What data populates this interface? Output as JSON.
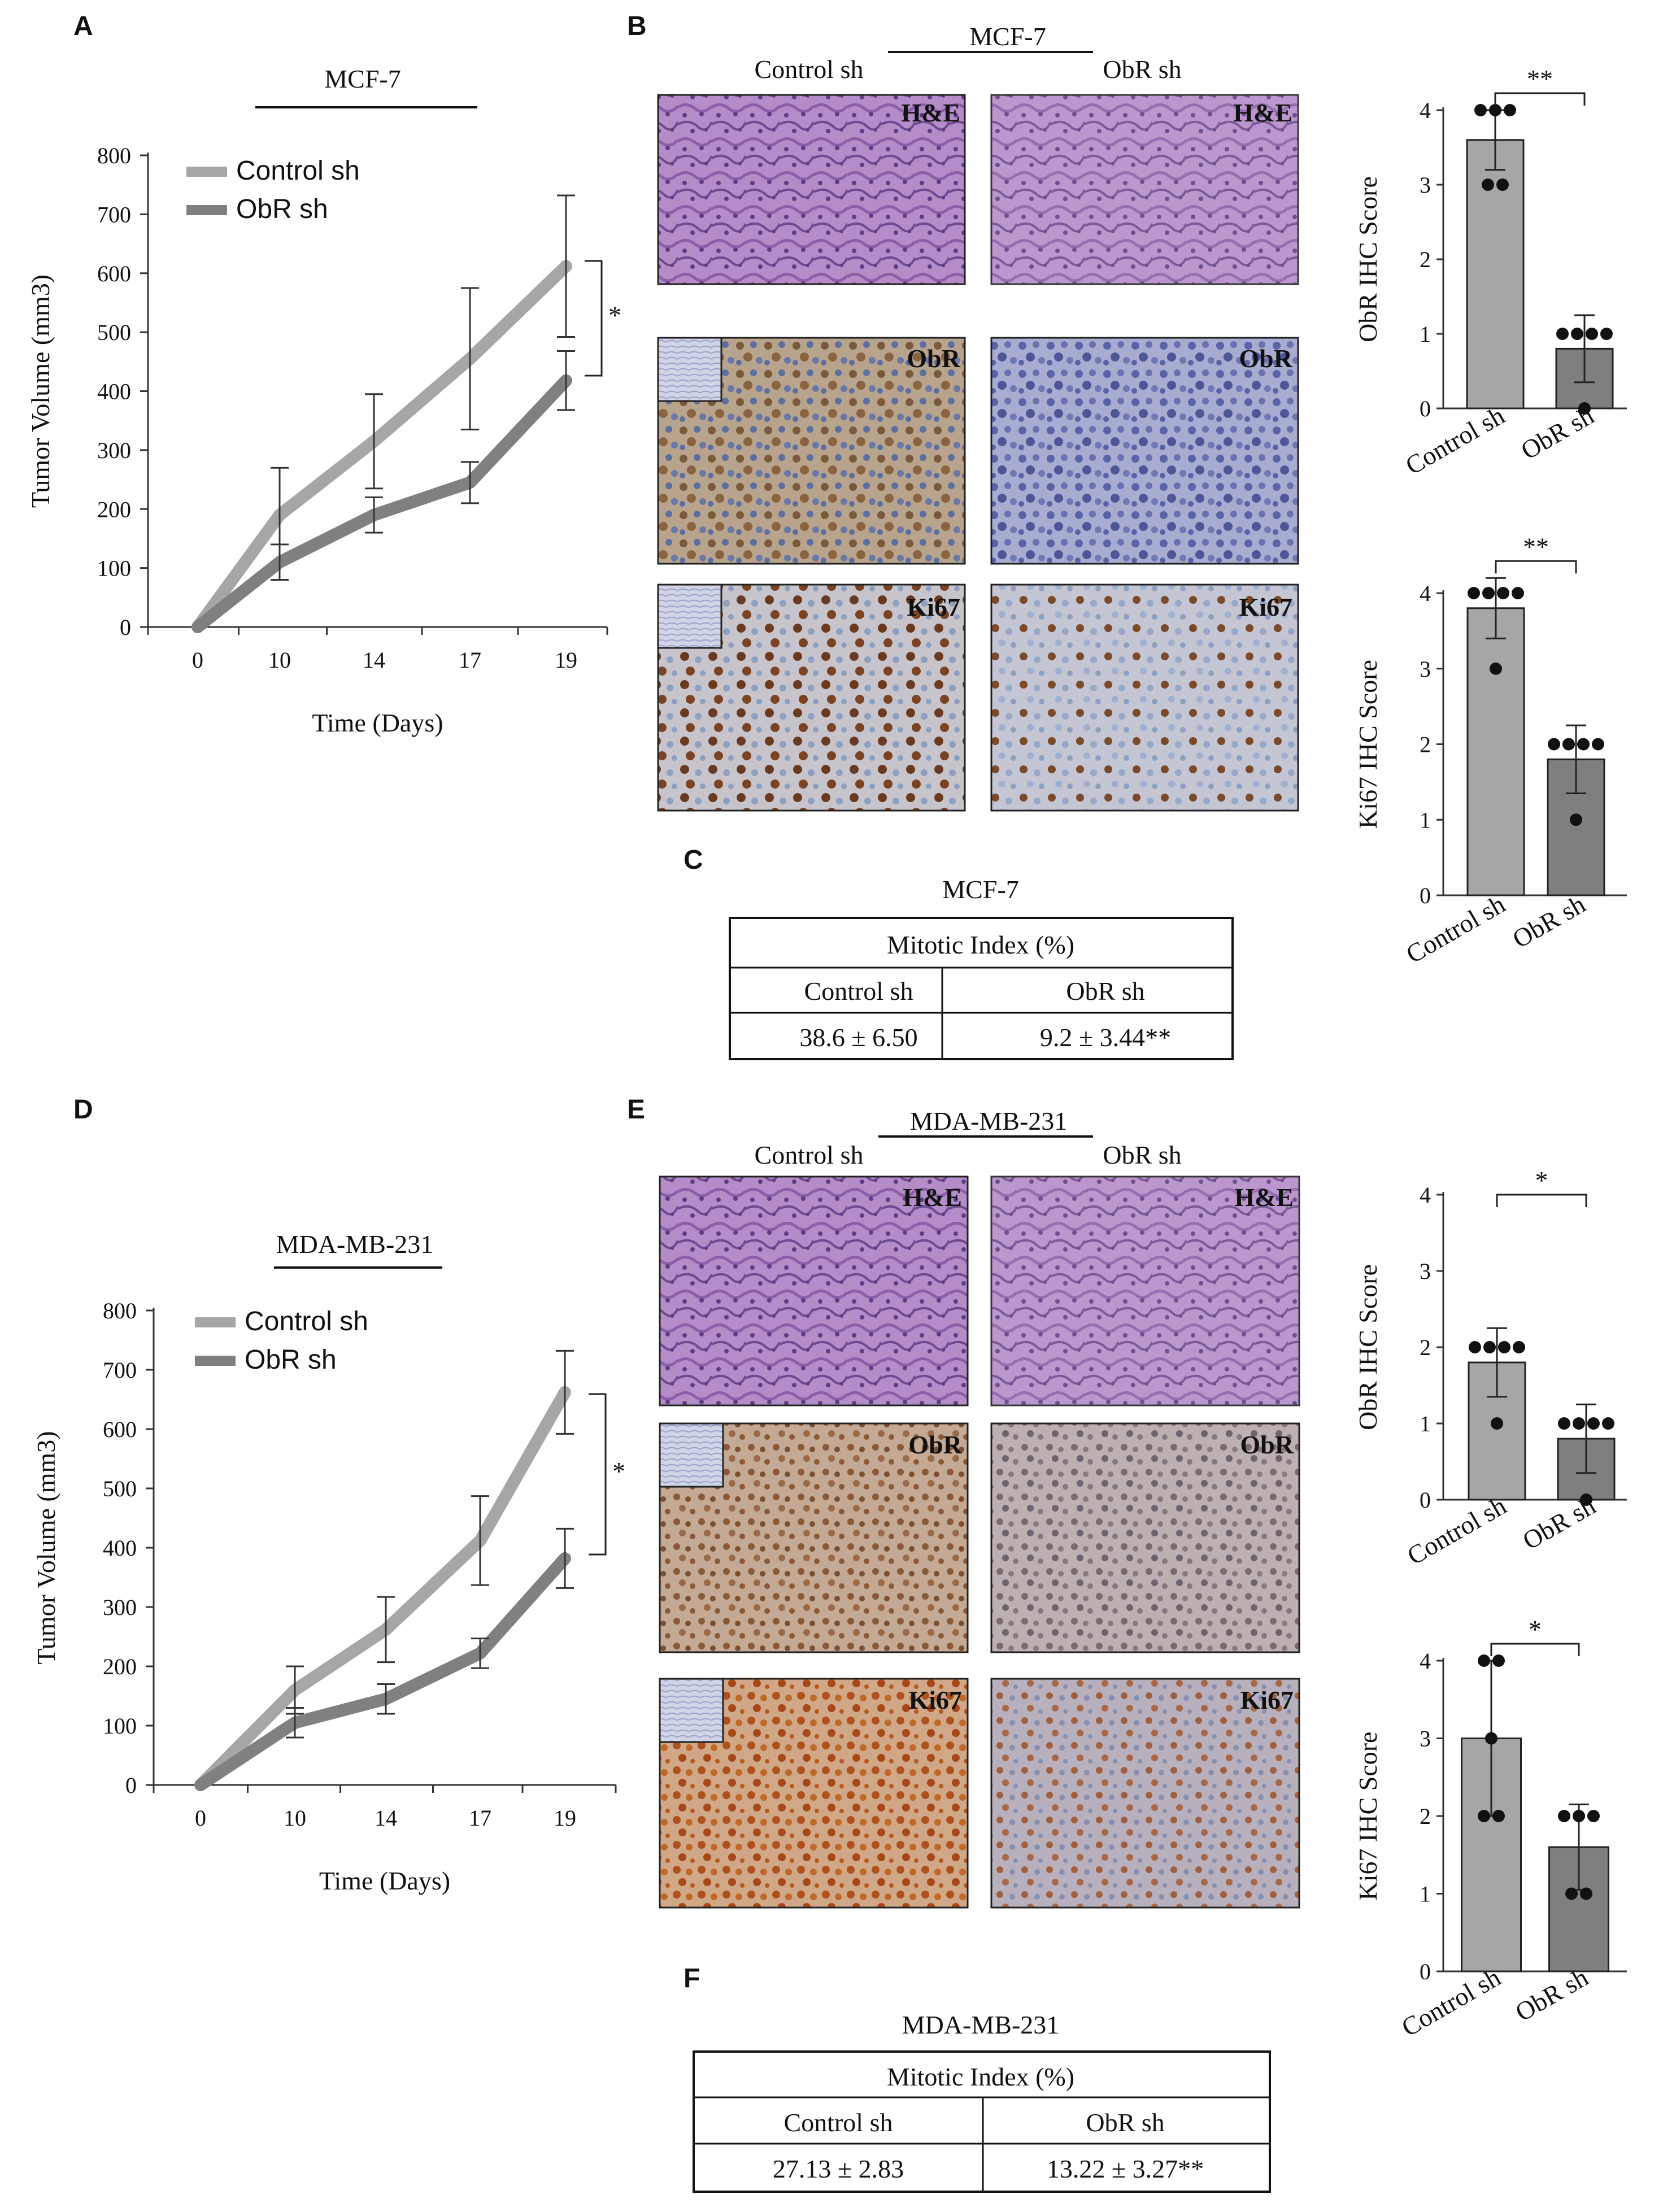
{
  "panels": {
    "A": {
      "label": "A",
      "title": "MCF-7"
    },
    "B": {
      "label": "B",
      "title": "MCF-7",
      "col1": "Control sh",
      "col2": "ObR sh",
      "stains": [
        "H&E",
        "ObR",
        "Ki67"
      ]
    },
    "C": {
      "label": "C",
      "title": "MCF-7",
      "table_header": "Mitotic Index (%)",
      "col1": "Control sh",
      "col2": "ObR sh",
      "val1": "38.6 ± 6.50",
      "val2": "9.2 ± 3.44**"
    },
    "D": {
      "label": "D",
      "title": "MDA-MB-231"
    },
    "E": {
      "label": "E",
      "title": "MDA-MB-231",
      "col1": "Control sh",
      "col2": "ObR sh",
      "stains": [
        "H&E",
        "ObR",
        "Ki67"
      ]
    },
    "F": {
      "label": "F",
      "title": "MDA-MB-231",
      "table_header": "Mitotic Index (%)",
      "col1": "Control sh",
      "col2": "ObR sh",
      "val1": "27.13 ± 2.83",
      "val2": "13.22 ± 3.27**"
    }
  },
  "colors": {
    "control": "#a6a6a6",
    "obr": "#808080",
    "control_bar": "#a6a6a6",
    "obr_bar": "#7f7f7f",
    "he": "#9a6fb8",
    "ihc_brown": "#8a5a3a",
    "ihc_blue": "#7a82b8"
  },
  "chart_data": [
    {
      "id": "A",
      "type": "line",
      "xlabel": "Time (Days)",
      "ylabel": "Tumor Volume (mm3)",
      "x": [
        "0",
        "10",
        "14",
        "17",
        "19"
      ],
      "ylim": [
        0,
        800
      ],
      "yticks": [
        0,
        100,
        200,
        300,
        400,
        500,
        600,
        700,
        800
      ],
      "sig": "*",
      "series": [
        {
          "name": "Control sh",
          "values": [
            0,
            190,
            315,
            455,
            612
          ],
          "err": [
            0,
            80,
            80,
            120,
            120
          ]
        },
        {
          "name": "ObR sh",
          "values": [
            0,
            110,
            190,
            245,
            418
          ],
          "err": [
            0,
            30,
            30,
            35,
            50
          ]
        }
      ]
    },
    {
      "id": "B1",
      "type": "bar",
      "ylabel": "ObR IHC Score",
      "categories": [
        "Control sh",
        "ObR sh"
      ],
      "values": [
        3.6,
        0.8
      ],
      "err": [
        0.4,
        0.45
      ],
      "ylim": [
        0,
        4
      ],
      "yticks": [
        0,
        1,
        2,
        3,
        4
      ],
      "sig": "**",
      "points": [
        [
          4,
          4,
          4,
          3,
          3
        ],
        [
          1,
          1,
          1,
          1,
          0
        ]
      ]
    },
    {
      "id": "B2",
      "type": "bar",
      "ylabel": "Ki67 IHC Score",
      "categories": [
        "Control sh",
        "ObR sh"
      ],
      "values": [
        3.8,
        1.8
      ],
      "err": [
        0.4,
        0.45
      ],
      "ylim": [
        0,
        4
      ],
      "yticks": [
        0,
        1,
        2,
        3,
        4
      ],
      "sig": "**",
      "points": [
        [
          4,
          4,
          4,
          4,
          3
        ],
        [
          2,
          2,
          2,
          2,
          1
        ]
      ]
    },
    {
      "id": "D",
      "type": "line",
      "xlabel": "Time (Days)",
      "ylabel": "Tumor Volume (mm3)",
      "x": [
        "0",
        "10",
        "14",
        "17",
        "19"
      ],
      "ylim": [
        0,
        800
      ],
      "yticks": [
        0,
        100,
        200,
        300,
        400,
        500,
        600,
        700,
        800
      ],
      "sig": "*",
      "series": [
        {
          "name": "Control sh",
          "values": [
            0,
            160,
            262,
            412,
            662
          ],
          "err": [
            0,
            40,
            55,
            75,
            70
          ]
        },
        {
          "name": "ObR sh",
          "values": [
            0,
            105,
            145,
            222,
            382
          ],
          "err": [
            0,
            25,
            25,
            25,
            50
          ]
        }
      ]
    },
    {
      "id": "E1",
      "type": "bar",
      "ylabel": "ObR IHC Score",
      "categories": [
        "Control sh",
        "ObR sh"
      ],
      "values": [
        1.8,
        0.8
      ],
      "err": [
        0.45,
        0.45
      ],
      "ylim": [
        0,
        4
      ],
      "yticks": [
        0,
        1,
        2,
        3,
        4
      ],
      "sig": "*",
      "points": [
        [
          2,
          2,
          2,
          2,
          1
        ],
        [
          1,
          1,
          1,
          1,
          0
        ]
      ]
    },
    {
      "id": "E2",
      "type": "bar",
      "ylabel": "Ki67 IHC Score",
      "categories": [
        "Control sh",
        "ObR sh"
      ],
      "values": [
        3.0,
        1.6
      ],
      "err": [
        1.0,
        0.55
      ],
      "ylim": [
        0,
        4
      ],
      "yticks": [
        0,
        1,
        2,
        3,
        4
      ],
      "sig": "*",
      "points": [
        [
          4,
          4,
          3,
          2,
          2
        ],
        [
          2,
          2,
          1,
          1,
          2
        ]
      ]
    }
  ]
}
